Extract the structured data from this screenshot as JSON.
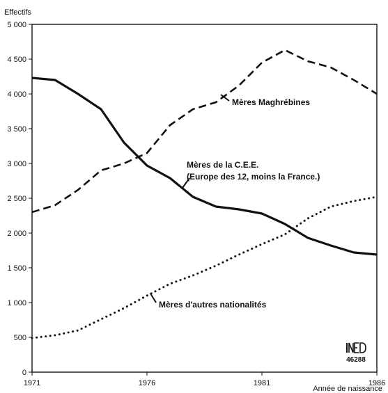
{
  "chart_data": {
    "type": "line",
    "ylabel": "Effectifs",
    "xlabel": "Année de naissance",
    "xlim": [
      1971,
      1986
    ],
    "ylim": [
      0,
      5000
    ],
    "x_ticks": [
      1971,
      1976,
      1981,
      1986
    ],
    "y_ticks": [
      0,
      500,
      1000,
      1500,
      2000,
      2500,
      3000,
      3500,
      4000,
      4500,
      5000
    ],
    "y_tick_labels": [
      "0",
      "500",
      "1 000",
      "1 500",
      "2 000",
      "2 500",
      "3 000",
      "3 500",
      "4 000",
      "4 500",
      "5 000"
    ],
    "x": [
      1971,
      1972,
      1973,
      1974,
      1975,
      1976,
      1977,
      1978,
      1979,
      1980,
      1981,
      1982,
      1983,
      1984,
      1985,
      1986
    ],
    "series": [
      {
        "name": "Mères Maghrébines",
        "style": "dashed",
        "values": [
          2300,
          2400,
          2620,
          2900,
          3000,
          3150,
          3550,
          3780,
          3880,
          4120,
          4450,
          4630,
          4470,
          4380,
          4200,
          4000
        ]
      },
      {
        "name": "Mères de la C.E.E. (Europe des 12, moins la France.)",
        "style": "solid",
        "values": [
          4230,
          4200,
          4000,
          3780,
          3300,
          2970,
          2790,
          2520,
          2380,
          2340,
          2280,
          2130,
          1930,
          1820,
          1720,
          1690
        ]
      },
      {
        "name": "Mères d'autres nationalités",
        "style": "dotted",
        "values": [
          490,
          530,
          600,
          760,
          920,
          1100,
          1270,
          1390,
          1530,
          1690,
          1840,
          1980,
          2210,
          2380,
          2460,
          2520
        ]
      }
    ],
    "annotations": [
      {
        "id": "maghreb",
        "lines": [
          "Mères Maghrébines"
        ]
      },
      {
        "id": "cee",
        "lines": [
          "Mères de la C.E.E.",
          "(Europe des 12, moins la France.)"
        ]
      },
      {
        "id": "autres",
        "lines": [
          "Mères d'autres nationalités"
        ]
      }
    ],
    "colors": {
      "line": "#111111",
      "axis": "#111111"
    }
  },
  "logo": {
    "text": "INED",
    "code": "46288"
  }
}
